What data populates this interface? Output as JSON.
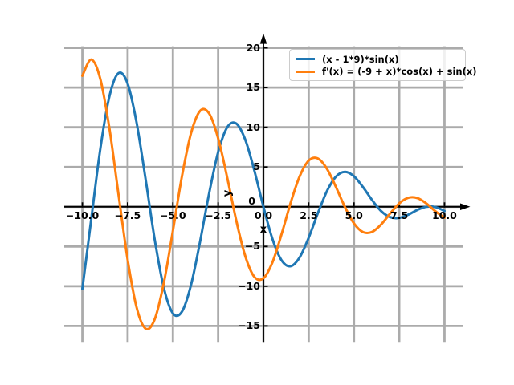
{
  "figure": {
    "background": "#ffffff",
    "title": ""
  },
  "chart_data": {
    "type": "line",
    "title": "",
    "xlabel": "x",
    "ylabel": "y",
    "xlim": [
      -11,
      11
    ],
    "ylim": [
      -17.1,
      20.2
    ],
    "grid": true,
    "grid_color": "#ababab",
    "axis_color": "#000000",
    "legend_position": "upper right",
    "xticks": {
      "values": [
        -10,
        -7.5,
        -5,
        -2.5,
        0,
        2.5,
        5,
        7.5,
        10
      ],
      "labels": [
        "−10.0",
        "−7.5",
        "−5.0",
        "−2.5",
        "0.0",
        "2.5",
        "5.0",
        "7.5",
        "10.0"
      ]
    },
    "yticks": {
      "values": [
        20,
        15,
        10,
        5,
        0,
        -5,
        -10,
        -15
      ],
      "labels": [
        "20",
        "15",
        "10",
        "5",
        "0",
        "−5",
        "−10",
        "−15"
      ]
    },
    "x": [
      -10,
      -9.5,
      -9,
      -8.5,
      -8,
      -7.5,
      -7,
      -6.5,
      -6,
      -5.5,
      -5,
      -4.5,
      -4,
      -3.5,
      -3,
      -2.5,
      -2,
      -1.5,
      -1,
      -0.5,
      0,
      0.5,
      1,
      1.5,
      2,
      2.5,
      3,
      3.5,
      4,
      4.5,
      5,
      5.5,
      6,
      6.5,
      7,
      7.5,
      8,
      8.5,
      9,
      9.5,
      10
    ],
    "series": [
      {
        "name": "(x - 1*9)*sin(x)",
        "color": "#1f77b4",
        "linewidth": 3,
        "y": [
          -10.34,
          -1.39,
          7.42,
          13.97,
          16.82,
          15.48,
          10.51,
          3.33,
          -4.19,
          -10.23,
          -13.42,
          -13.2,
          -9.84,
          -4.39,
          1.69,
          6.88,
          10.0,
          10.47,
          8.41,
          4.55,
          0.0,
          -4.07,
          -6.73,
          -7.48,
          -6.37,
          -3.89,
          -0.85,
          1.93,
          3.78,
          4.4,
          3.84,
          2.47,
          0.84,
          -0.54,
          -1.31,
          -1.41,
          -0.99,
          -0.4,
          0.0,
          -0.04,
          -0.54
        ]
      },
      {
        "name": "f'(x) = (-9 + x)*cos(x) + sin(x)",
        "color": "#ff7f0e",
        "linewidth": 3,
        "y": [
          16.49,
          18.52,
          15.99,
          9.74,
          1.48,
          -6.66,
          -12.72,
          -15.35,
          -14.12,
          -9.57,
          -3.01,
          3.82,
          9.25,
          12.06,
          11.74,
          8.61,
          3.67,
          -1.74,
          -6.24,
          -8.82,
          -9.0,
          -6.98,
          -3.48,
          0.47,
          3.82,
          5.81,
          6.08,
          4.8,
          2.51,
          -0.03,
          -2.09,
          -3.19,
          -3.16,
          -2.23,
          -0.85,
          0.42,
          1.13,
          1.1,
          0.41,
          -0.57,
          -1.38
        ]
      }
    ]
  }
}
